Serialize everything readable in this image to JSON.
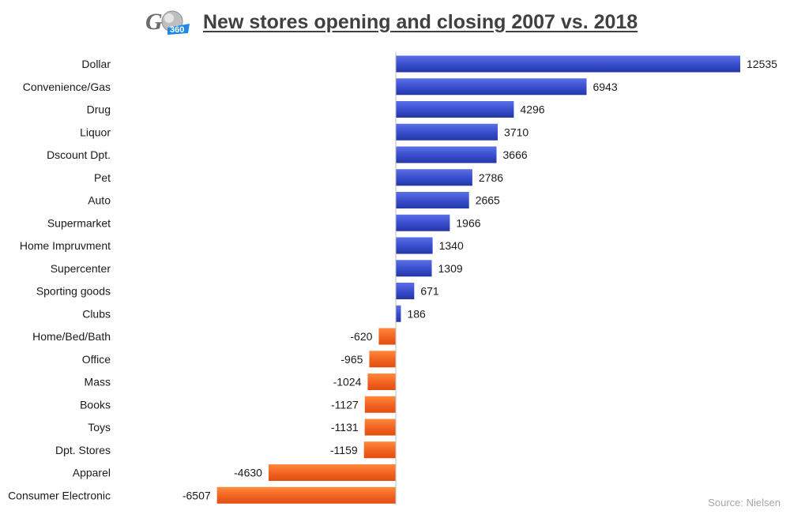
{
  "header": {
    "logo_text": "G360",
    "title": "New stores opening and closing 2007 vs. 2018"
  },
  "source": "Source: Nielsen",
  "colors": {
    "positive": "#3a4fcf",
    "negative": "#f26522",
    "axis": "#bfbfbf"
  },
  "chart_data": {
    "type": "bar",
    "orientation": "horizontal",
    "title": "New stores opening and closing 2007 vs. 2018",
    "xlabel": "",
    "ylabel": "",
    "xlim": [
      -6507,
      12535
    ],
    "grid": false,
    "legend": "none",
    "categories": [
      "Dollar",
      "Convenience/Gas",
      "Drug",
      "Liquor",
      "Dscount Dpt.",
      "Pet",
      "Auto",
      "Supermarket",
      "Home Impruvment",
      "Supercenter",
      "Sporting goods",
      "Clubs",
      "Home/Bed/Bath",
      "Office",
      "Mass",
      "Books",
      "Toys",
      "Dpt. Stores",
      "Apparel",
      "Consumer Electronic"
    ],
    "values": [
      12535,
      6943,
      4296,
      3710,
      3666,
      2786,
      2665,
      1966,
      1340,
      1309,
      671,
      186,
      -620,
      -965,
      -1024,
      -1127,
      -1131,
      -1159,
      -4630,
      -6507
    ]
  }
}
